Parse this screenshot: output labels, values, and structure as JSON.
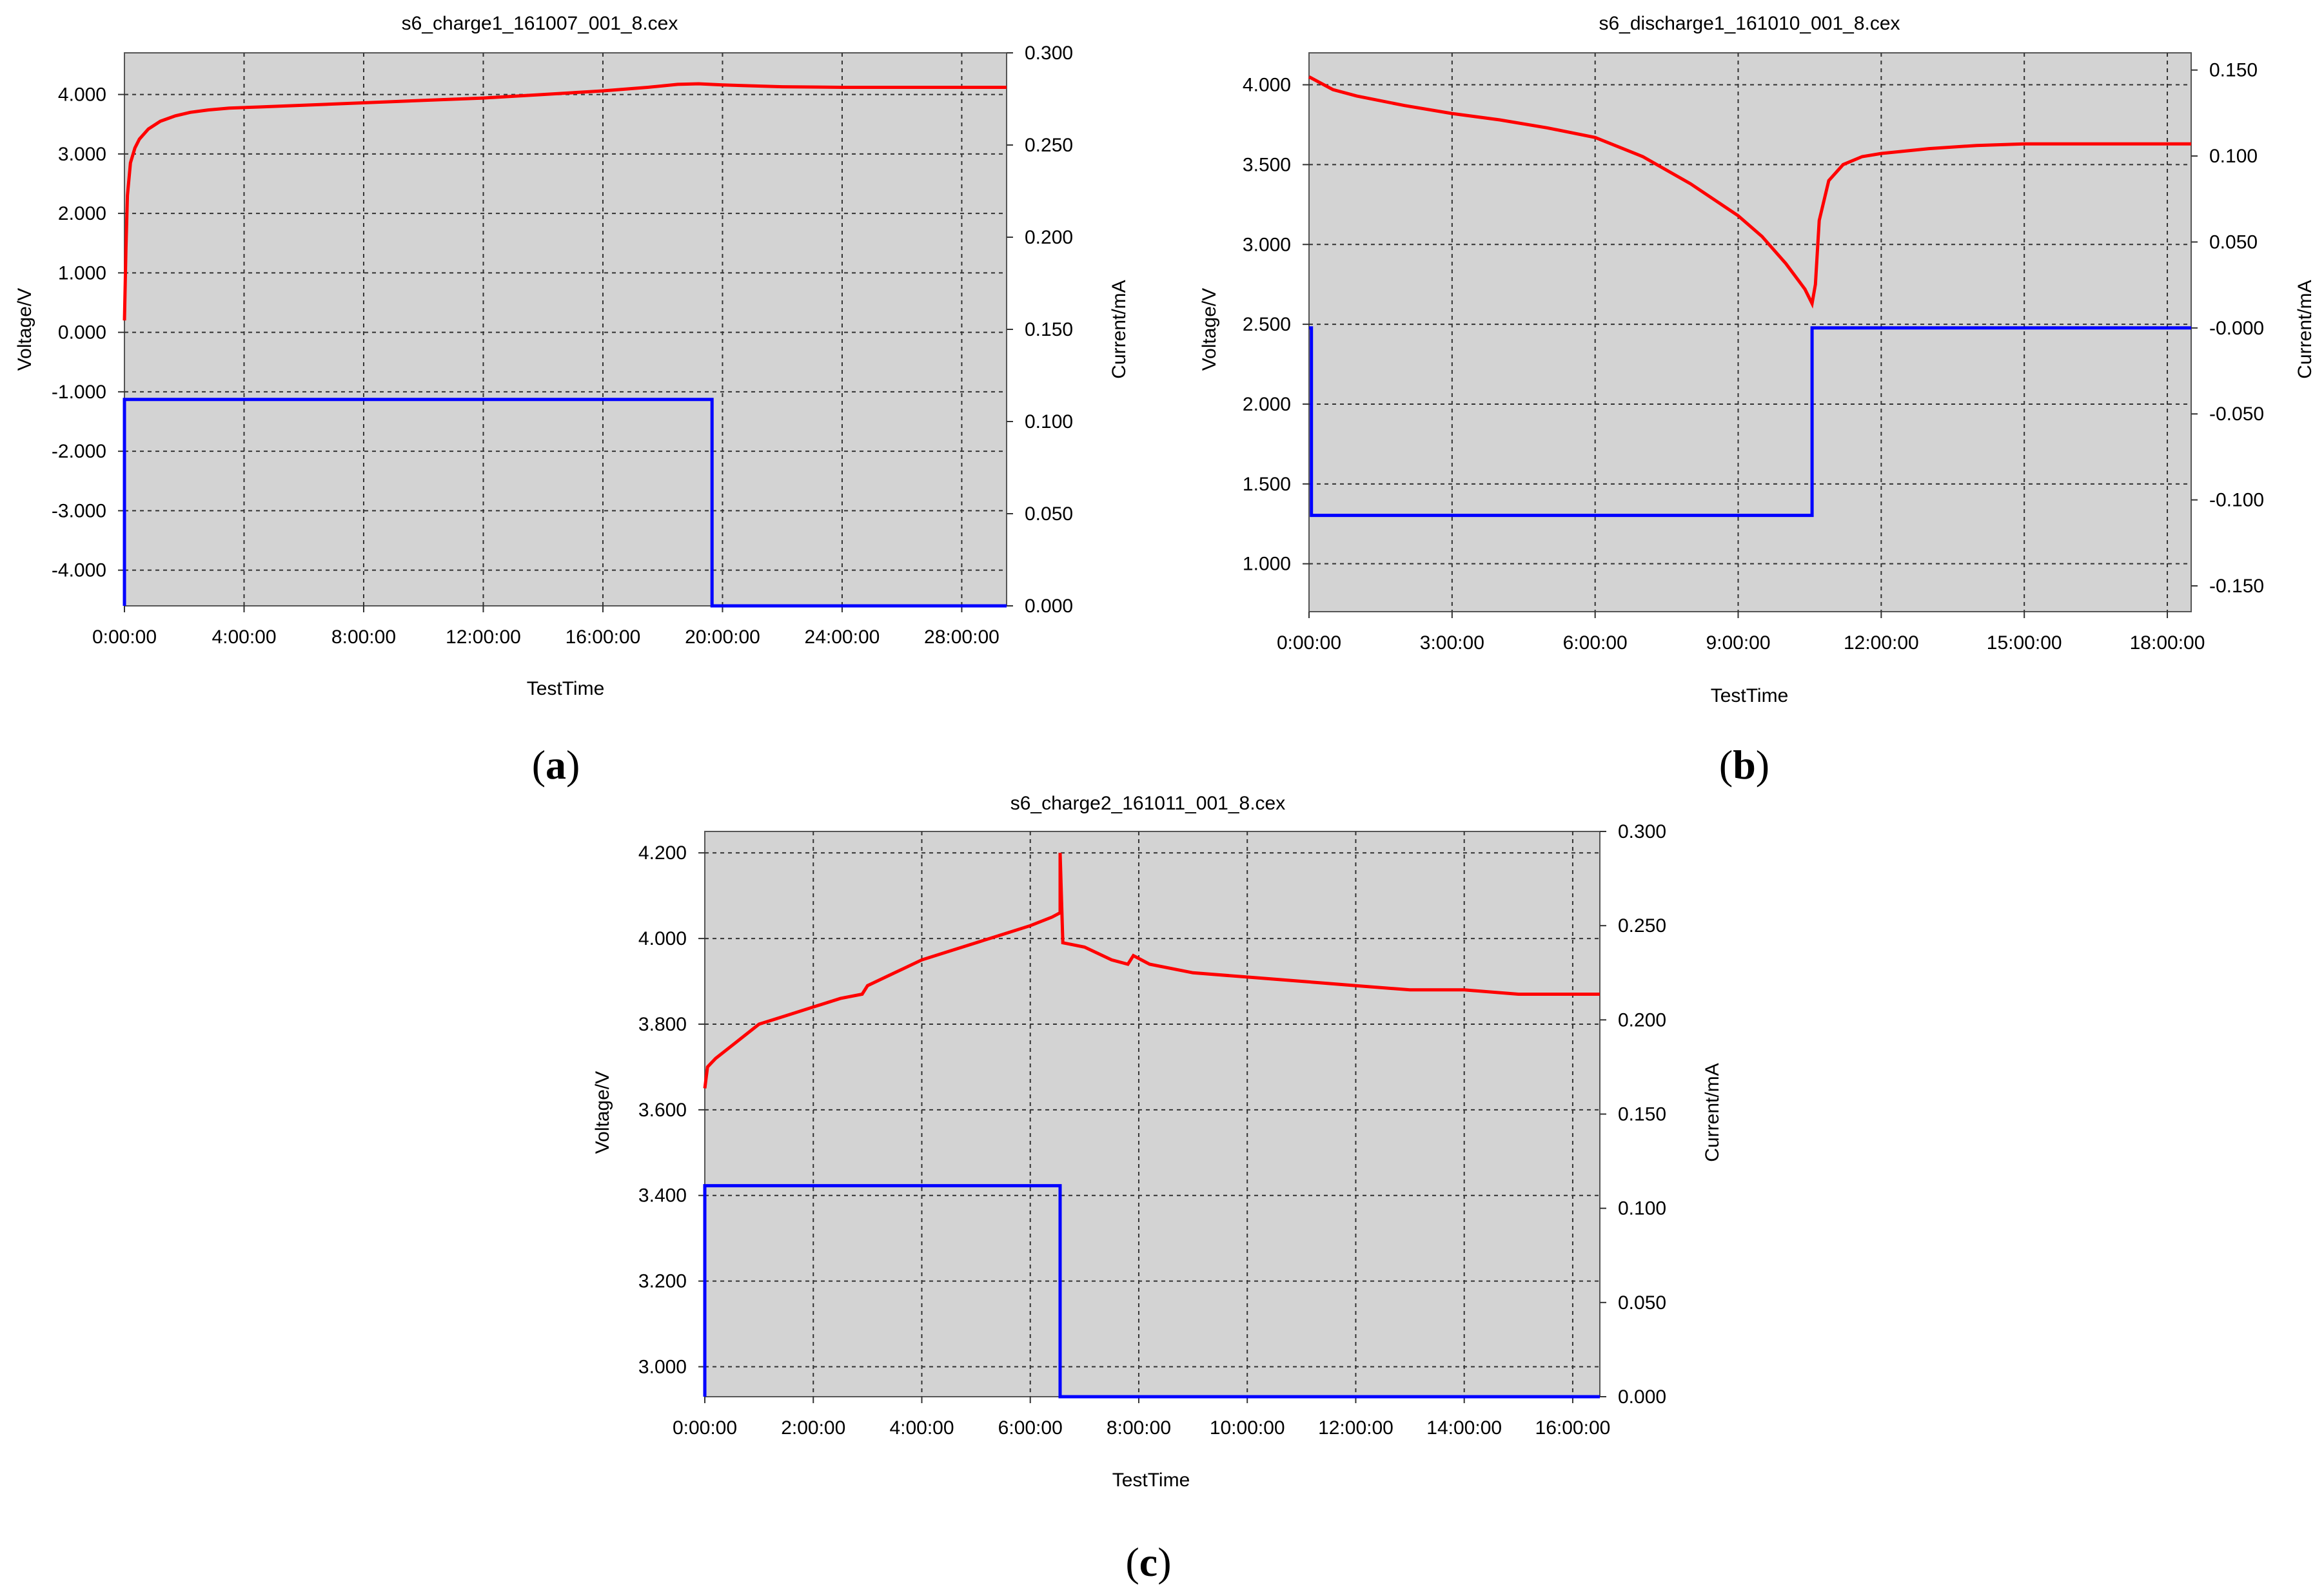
{
  "figure": {
    "panels": [
      {
        "label_open": "(",
        "label_letter": "a",
        "label_close": ")"
      },
      {
        "label_open": "(",
        "label_letter": "b",
        "label_close": ")"
      },
      {
        "label_open": "(",
        "label_letter": "c",
        "label_close": ")"
      }
    ]
  },
  "colors": {
    "voltage": "#ff0000",
    "current": "#0000ff",
    "plot_bg": "#d3d3d3"
  },
  "chart_data": [
    {
      "type": "line",
      "title": "s6_charge1_161007_001_8.cex",
      "xlabel": "TestTime",
      "ylabel": "Voltage/V",
      "y2label": "Current/mA",
      "xlim": [
        0,
        29.5
      ],
      "ylim": [
        -4.6,
        4.7
      ],
      "y2lim": [
        0,
        0.3
      ],
      "grid": true,
      "xticks": [
        0,
        4,
        8,
        12,
        16,
        20,
        24,
        28
      ],
      "xtick_labels": [
        "0:00:00",
        "4:00:00",
        "8:00:00",
        "12:00:00",
        "16:00:00",
        "20:00:00",
        "24:00:00",
        "28:00:00"
      ],
      "yticks": [
        4,
        3,
        2,
        1,
        0,
        -1,
        -2,
        -3,
        -4
      ],
      "ytick_labels": [
        "4.000",
        "3.000",
        "2.000",
        "1.000",
        "0.000",
        "-1.000",
        "-2.000",
        "-3.000",
        "-4.000"
      ],
      "y2ticks": [
        0.3,
        0.25,
        0.2,
        0.15,
        0.1,
        0.05,
        0
      ],
      "y2tick_labels": [
        "0.300",
        "0.250",
        "0.200",
        "0.150",
        "0.100",
        "0.050",
        "0.000"
      ],
      "series": [
        {
          "name": "Voltage",
          "axis": "left",
          "x": [
            0,
            0.05,
            0.1,
            0.2,
            0.35,
            0.5,
            0.8,
            1.2,
            1.7,
            2.2,
            2.8,
            3.5,
            4.5,
            6,
            8,
            10,
            12,
            14,
            16,
            17.5,
            18.5,
            19.2,
            20,
            22,
            24,
            26,
            28,
            29.5
          ],
          "y": [
            0.2,
            1.4,
            2.3,
            2.85,
            3.1,
            3.25,
            3.42,
            3.55,
            3.64,
            3.7,
            3.74,
            3.77,
            3.79,
            3.82,
            3.86,
            3.9,
            3.94,
            4.0,
            4.06,
            4.12,
            4.17,
            4.18,
            4.16,
            4.13,
            4.12,
            4.12,
            4.12,
            4.12
          ]
        },
        {
          "name": "Current",
          "axis": "right",
          "x": [
            0,
            0,
            19.65,
            19.65,
            29.5
          ],
          "y": [
            0,
            0.112,
            0.112,
            0,
            0
          ]
        }
      ]
    },
    {
      "type": "line",
      "title": "s6_discharge1_161010_001_8.cex",
      "xlabel": "TestTime",
      "ylabel": "Voltage/V",
      "y2label": "Current/mA",
      "xlim": [
        0,
        18.5
      ],
      "ylim": [
        0.7,
        4.2
      ],
      "y2lim": [
        -0.165,
        0.16
      ],
      "grid": true,
      "xticks": [
        0,
        3,
        6,
        9,
        12,
        15,
        18
      ],
      "xtick_labels": [
        "0:00:00",
        "3:00:00",
        "6:00:00",
        "9:00:00",
        "12:00:00",
        "15:00:00",
        "18:00:00"
      ],
      "yticks": [
        4,
        3.5,
        3,
        2.5,
        2,
        1.5,
        1
      ],
      "ytick_labels": [
        "4.000",
        "3.500",
        "3.000",
        "2.500",
        "2.000",
        "1.500",
        "1.000"
      ],
      "y2ticks": [
        0.15,
        0.1,
        0.05,
        0,
        -0.05,
        -0.1,
        -0.15
      ],
      "y2tick_labels": [
        "0.150",
        "0.100",
        "0.050",
        "-0.000",
        "-0.050",
        "-0.100",
        "-0.150"
      ],
      "series": [
        {
          "name": "Voltage",
          "axis": "left",
          "x": [
            0,
            0.5,
            1,
            2,
            3,
            4,
            5,
            6,
            7,
            8,
            9,
            9.5,
            10,
            10.4,
            10.55,
            10.62,
            10.7,
            10.9,
            11.2,
            11.6,
            12,
            13,
            14,
            15,
            16,
            17,
            18,
            18.5
          ],
          "y": [
            4.05,
            3.97,
            3.93,
            3.87,
            3.82,
            3.78,
            3.73,
            3.67,
            3.55,
            3.38,
            3.18,
            3.05,
            2.88,
            2.72,
            2.63,
            2.75,
            3.15,
            3.4,
            3.5,
            3.55,
            3.57,
            3.6,
            3.62,
            3.63,
            3.63,
            3.63,
            3.63,
            3.63
          ]
        },
        {
          "name": "Current",
          "axis": "right",
          "x": [
            0,
            0.05,
            0.05,
            10.55,
            10.55,
            18.5
          ],
          "y": [
            0,
            0,
            -0.109,
            -0.109,
            0,
            0
          ]
        }
      ]
    },
    {
      "type": "line",
      "title": "s6_charge2_161011_001_8.cex",
      "xlabel": "TestTime",
      "ylabel": "Voltage/V",
      "y2label": "Current/mA",
      "xlim": [
        0,
        16.5
      ],
      "ylim": [
        2.93,
        4.25
      ],
      "y2lim": [
        0,
        0.3
      ],
      "grid": true,
      "xticks": [
        0,
        2,
        4,
        6,
        8,
        10,
        12,
        14,
        16
      ],
      "xtick_labels": [
        "0:00:00",
        "2:00:00",
        "4:00:00",
        "6:00:00",
        "8:00:00",
        "10:00:00",
        "12:00:00",
        "14:00:00",
        "16:00:00"
      ],
      "yticks": [
        4.2,
        4,
        3.8,
        3.6,
        3.4,
        3.2,
        3
      ],
      "ytick_labels": [
        "4.200",
        "4.000",
        "3.800",
        "3.600",
        "3.400",
        "3.200",
        "3.000"
      ],
      "y2ticks": [
        0.3,
        0.25,
        0.2,
        0.15,
        0.1,
        0.05,
        0
      ],
      "y2tick_labels": [
        "0.300",
        "0.250",
        "0.200",
        "0.150",
        "0.100",
        "0.050",
        "0.000"
      ],
      "series": [
        {
          "name": "Voltage",
          "axis": "left",
          "x": [
            0,
            0.05,
            0.2,
            0.5,
            1,
            1.5,
            2,
            2.5,
            2.9,
            3.0,
            3.5,
            4,
            4.5,
            5,
            5.5,
            6,
            6.4,
            6.55,
            6.55,
            6.6,
            7,
            7.5,
            7.8,
            7.9,
            8.2,
            9,
            10,
            11,
            12,
            13,
            13.5,
            14,
            15,
            16,
            16.5
          ],
          "y": [
            3.65,
            3.7,
            3.72,
            3.75,
            3.8,
            3.82,
            3.84,
            3.86,
            3.87,
            3.89,
            3.92,
            3.95,
            3.97,
            3.99,
            4.01,
            4.03,
            4.05,
            4.06,
            4.2,
            3.99,
            3.98,
            3.95,
            3.94,
            3.96,
            3.94,
            3.92,
            3.91,
            3.9,
            3.89,
            3.88,
            3.88,
            3.88,
            3.87,
            3.87,
            3.87
          ]
        },
        {
          "name": "Current",
          "axis": "right",
          "x": [
            0,
            0,
            6.55,
            6.55,
            16.5
          ],
          "y": [
            0,
            0.112,
            0.112,
            0,
            0
          ]
        }
      ]
    }
  ]
}
